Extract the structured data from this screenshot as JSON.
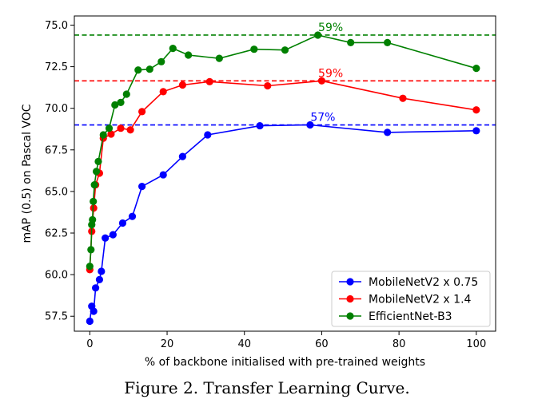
{
  "caption": "Figure 2. Transfer Learning Curve.",
  "chart_data": {
    "type": "line",
    "xlabel": "% of backbone initialised with pre-trained weights",
    "ylabel": "mAP (0.5) on Pascal VOC",
    "xlim": [
      -4,
      105
    ],
    "ylim": [
      56.6,
      75.55
    ],
    "xticks": [
      0,
      20,
      40,
      60,
      80,
      100
    ],
    "yticks": [
      57.5,
      60.0,
      62.5,
      65.0,
      67.5,
      70.0,
      72.5,
      75.0
    ],
    "legend_position": "lower-right",
    "series": [
      {
        "name": "MobileNetV2 x 0.75",
        "color": "#0000ff",
        "x": [
          0,
          0.5,
          1,
          1.5,
          2.5,
          3,
          4,
          6,
          8.5,
          11,
          13.5,
          19,
          24,
          30.5,
          44,
          57,
          77,
          100
        ],
        "y": [
          57.2,
          58.1,
          57.8,
          59.2,
          59.7,
          60.2,
          62.2,
          62.4,
          63.1,
          63.5,
          65.3,
          66.0,
          67.1,
          68.4,
          68.95,
          69.0,
          68.55,
          68.65
        ]
      },
      {
        "name": "MobileNetV2 x 1.4",
        "color": "#ff0000",
        "x": [
          0,
          0.5,
          1,
          1.5,
          2.5,
          3.5,
          5.5,
          8,
          10.5,
          13.5,
          19,
          24,
          31,
          46,
          60,
          81,
          100
        ],
        "y": [
          60.3,
          62.6,
          64.0,
          65.4,
          66.1,
          68.2,
          68.45,
          68.8,
          68.7,
          69.8,
          71.0,
          71.4,
          71.6,
          71.35,
          71.65,
          70.6,
          69.9
        ]
      },
      {
        "name": "EfficientNet-B3",
        "color": "#008000",
        "x": [
          0,
          0.3,
          0.5,
          0.7,
          0.9,
          1.2,
          1.7,
          2.2,
          3.5,
          5,
          6.5,
          8,
          9.5,
          12.5,
          15.5,
          18.5,
          21.5,
          25.5,
          33.5,
          42.5,
          50.5,
          59,
          67.5,
          77,
          100
        ],
        "y": [
          60.5,
          61.5,
          63.0,
          63.3,
          64.4,
          65.4,
          66.2,
          66.8,
          68.4,
          68.8,
          70.2,
          70.35,
          70.85,
          72.3,
          72.35,
          72.8,
          73.6,
          73.2,
          73.0,
          73.55,
          73.5,
          74.4,
          73.95,
          73.95,
          72.4
        ]
      }
    ],
    "reference_lines": [
      {
        "y": 69.0,
        "color": "#0000ff",
        "label": "57%",
        "label_x": 57
      },
      {
        "y": 71.65,
        "color": "#ff0000",
        "label": "59%",
        "label_x": 59
      },
      {
        "y": 74.4,
        "color": "#008000",
        "label": "59%",
        "label_x": 59
      }
    ]
  }
}
